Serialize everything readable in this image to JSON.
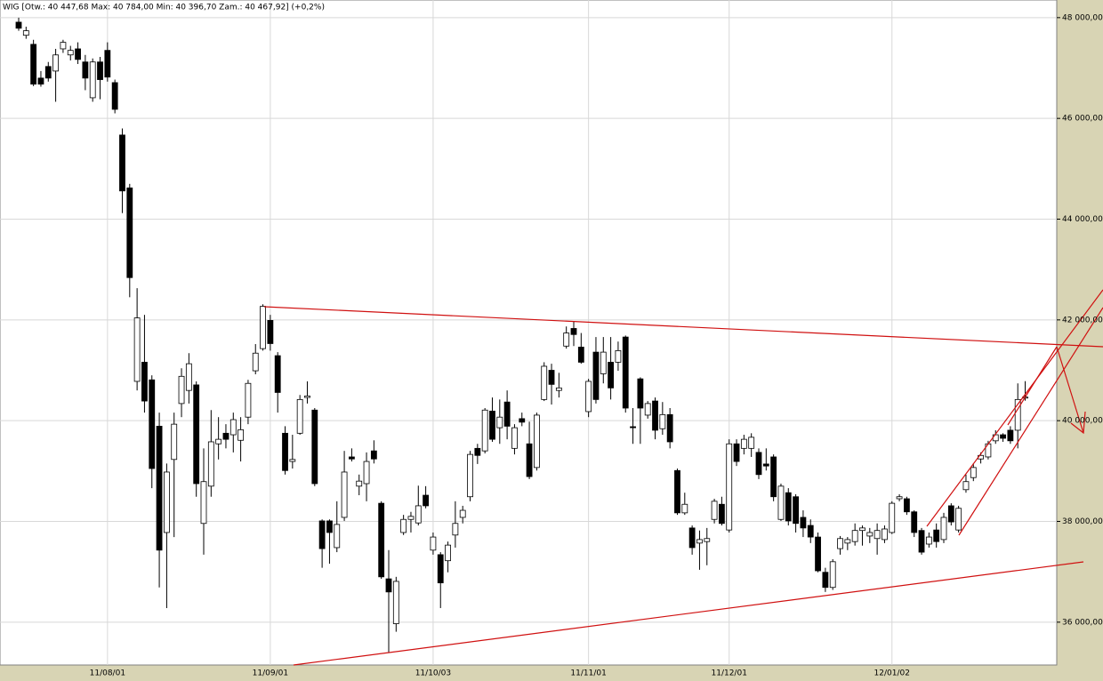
{
  "chart_data": {
    "type": "candlestick",
    "title": "WIG [Otw.: 40 447,68   Max: 40 784,00   Min: 40 396,70   Zam.: 40 467,92] (+0,2%)",
    "categories": [
      null,
      null,
      null,
      null,
      null,
      null,
      null,
      null,
      null,
      null,
      null,
      null,
      "11/08/01",
      null,
      null,
      null,
      null,
      null,
      null,
      null,
      null,
      null,
      null,
      null,
      null,
      null,
      null,
      null,
      null,
      null,
      null,
      null,
      null,
      null,
      "11/09/01",
      null,
      null,
      null,
      null,
      null,
      null,
      null,
      null,
      null,
      null,
      null,
      null,
      null,
      null,
      null,
      null,
      null,
      null,
      null,
      null,
      null,
      "11/10/03",
      null,
      null,
      null,
      null,
      null,
      null,
      null,
      null,
      null,
      null,
      null,
      null,
      null,
      null,
      null,
      null,
      null,
      null,
      null,
      null,
      "11/11/01",
      null,
      null,
      null,
      null,
      null,
      null,
      null,
      null,
      null,
      null,
      null,
      null,
      null,
      null,
      null,
      null,
      null,
      null,
      "11/12/01",
      null,
      null,
      null,
      null,
      null,
      null,
      null,
      null,
      null,
      null,
      null,
      null,
      null,
      null,
      null,
      null,
      null,
      null,
      null,
      null,
      null,
      "12/01/02",
      null,
      null,
      null,
      null,
      null,
      null,
      null,
      null,
      null,
      null,
      null,
      null,
      null,
      null,
      null,
      null,
      null,
      null
    ],
    "open": [
      47910,
      47650,
      47470,
      46800,
      47030,
      46940,
      47380,
      47260,
      47380,
      47120,
      46410,
      47120,
      47350,
      46710,
      45670,
      44620,
      40780,
      41160,
      40810,
      39890,
      37780,
      39230,
      40340,
      40600,
      40710,
      37960,
      38700,
      39540,
      39750,
      39720,
      39610,
      40070,
      40990,
      41430,
      41990,
      41290,
      39750,
      39190,
      39750,
      40460,
      40210,
      38010,
      38010,
      37480,
      38080,
      39280,
      38700,
      38750,
      39400,
      38360,
      36860,
      35970,
      37780,
      38040,
      37970,
      38520,
      37430,
      37340,
      37220,
      37730,
      38080,
      38490,
      39450,
      39400,
      40190,
      39860,
      40370,
      39450,
      40040,
      39540,
      39070,
      40420,
      41000,
      40600,
      41480,
      41830,
      41460,
      40180,
      41360,
      40930,
      41160,
      41160,
      41660,
      39880,
      40830,
      40110,
      40390,
      39840,
      40120,
      39010,
      38170,
      37870,
      37570,
      37600,
      38040,
      38340,
      37830,
      39540,
      39450,
      39450,
      39370,
      39140,
      39280,
      38040,
      38570,
      38490,
      38080,
      37920,
      37690,
      36990,
      36690,
      37460,
      37570,
      37600,
      37820,
      37710,
      37660,
      37640,
      37780,
      38450,
      38450,
      38190,
      37820,
      37550,
      37830,
      37640,
      38310,
      37830,
      38630,
      38870,
      39240,
      39280,
      39600,
      39720,
      39810,
      39810,
      40447.68
    ],
    "high": [
      48000,
      47820,
      47560,
      46940,
      47120,
      47380,
      47560,
      47440,
      47510,
      47260,
      47190,
      47220,
      47510,
      46770,
      45800,
      44700,
      42630,
      42100,
      40900,
      40160,
      39150,
      40160,
      41040,
      41340,
      40780,
      39450,
      40210,
      40070,
      39930,
      40160,
      40070,
      40810,
      41520,
      42310,
      42100,
      41360,
      39890,
      39720,
      40510,
      40780,
      40250,
      38040,
      38040,
      38400,
      39400,
      39450,
      38930,
      39370,
      39610,
      38400,
      37430,
      36900,
      38130,
      38190,
      38710,
      38700,
      37780,
      37390,
      37600,
      38400,
      38310,
      39400,
      39540,
      40250,
      40460,
      40420,
      40600,
      39930,
      40160,
      39980,
      40160,
      41160,
      41130,
      40950,
      41870,
      41970,
      41740,
      40830,
      41660,
      41660,
      41660,
      41570,
      41690,
      40250,
      40860,
      40390,
      40460,
      40370,
      40250,
      39050,
      38570,
      37920,
      37820,
      37870,
      38450,
      38490,
      39630,
      39630,
      39720,
      39750,
      39450,
      39450,
      39330,
      38750,
      38660,
      38540,
      38220,
      38040,
      37780,
      37080,
      37250,
      37710,
      37690,
      37960,
      37920,
      37870,
      37960,
      37920,
      38400,
      38540,
      38490,
      38220,
      37870,
      37780,
      37960,
      38170,
      38360,
      38310,
      38930,
      39150,
      39370,
      39600,
      39810,
      39750,
      39890,
      40740,
      40784
    ],
    "low": [
      47740,
      47580,
      46640,
      46630,
      46730,
      46330,
      47300,
      47150,
      47080,
      46560,
      46330,
      46380,
      46730,
      46100,
      44120,
      42450,
      40600,
      40160,
      38660,
      36690,
      36280,
      37690,
      40070,
      40340,
      38490,
      37340,
      38490,
      39230,
      39450,
      39370,
      39190,
      39930,
      40920,
      41390,
      41390,
      40160,
      38930,
      39050,
      39720,
      40340,
      38700,
      37080,
      37160,
      37390,
      38010,
      39190,
      38520,
      38400,
      39150,
      36860,
      35400,
      35810,
      37730,
      37780,
      37920,
      38260,
      37340,
      36280,
      36990,
      37480,
      37960,
      38400,
      39140,
      39350,
      39580,
      39540,
      39630,
      39330,
      39890,
      38840,
      39010,
      40390,
      40320,
      40460,
      41430,
      41480,
      41130,
      40070,
      40340,
      40740,
      40420,
      40990,
      40160,
      39540,
      39540,
      40040,
      39630,
      39720,
      39450,
      38130,
      38130,
      37340,
      37040,
      37130,
      37960,
      37920,
      37780,
      39100,
      39330,
      39280,
      38840,
      39010,
      38400,
      38010,
      37920,
      37780,
      37690,
      37570,
      36990,
      36600,
      36640,
      37340,
      37430,
      37520,
      37520,
      37570,
      37340,
      37570,
      37750,
      38400,
      38130,
      37690,
      37340,
      37480,
      37480,
      37570,
      37920,
      37780,
      38570,
      38800,
      39150,
      39230,
      39540,
      39580,
      39540,
      39450,
      40396.7
    ],
    "close": [
      47790,
      47740,
      46680,
      46680,
      46800,
      47260,
      47510,
      47350,
      47170,
      46800,
      47120,
      46770,
      46820,
      46180,
      44560,
      42840,
      42040,
      40390,
      39050,
      37430,
      38980,
      39930,
      40880,
      41130,
      38750,
      38790,
      39580,
      39630,
      39630,
      40020,
      39820,
      40740,
      41340,
      42270,
      41530,
      40560,
      39010,
      39230,
      40420,
      40490,
      38750,
      37460,
      37780,
      37940,
      38980,
      39240,
      38800,
      39190,
      39240,
      36900,
      36600,
      36810,
      38040,
      38100,
      38310,
      38310,
      37690,
      36780,
      37530,
      37960,
      38220,
      39330,
      39310,
      40210,
      39630,
      40070,
      39890,
      39860,
      39970,
      38890,
      40110,
      41080,
      40720,
      40650,
      41740,
      41710,
      41160,
      40780,
      40420,
      41360,
      40650,
      41390,
      40250,
      39860,
      40250,
      40340,
      39810,
      40120,
      39580,
      38170,
      38340,
      37480,
      37640,
      37660,
      38400,
      37960,
      39540,
      39190,
      39630,
      39670,
      38930,
      39100,
      38490,
      38700,
      38010,
      37960,
      37870,
      37690,
      37020,
      36690,
      37200,
      37660,
      37640,
      37820,
      37870,
      37780,
      37820,
      37850,
      38360,
      38490,
      38190,
      37780,
      37390,
      37690,
      37600,
      38080,
      37990,
      38260,
      38790,
      39070,
      39310,
      39540,
      39720,
      39650,
      39600,
      40420,
      40467.92
    ],
    "ylim": [
      35150,
      48350
    ],
    "yticks": [
      {
        "value": 36000,
        "label": "36 000,00"
      },
      {
        "value": 38000,
        "label": "38 000,00"
      },
      {
        "value": 40000,
        "label": "40 000,00"
      },
      {
        "value": 42000,
        "label": "42 000,00"
      },
      {
        "value": 44000,
        "label": "44 000,00"
      },
      {
        "value": 46000,
        "label": "46 000,00"
      },
      {
        "value": 48000,
        "label": "48 000,00"
      }
    ],
    "grid": true,
    "up_color": "#ffffff",
    "down_color": "#000000"
  }
}
